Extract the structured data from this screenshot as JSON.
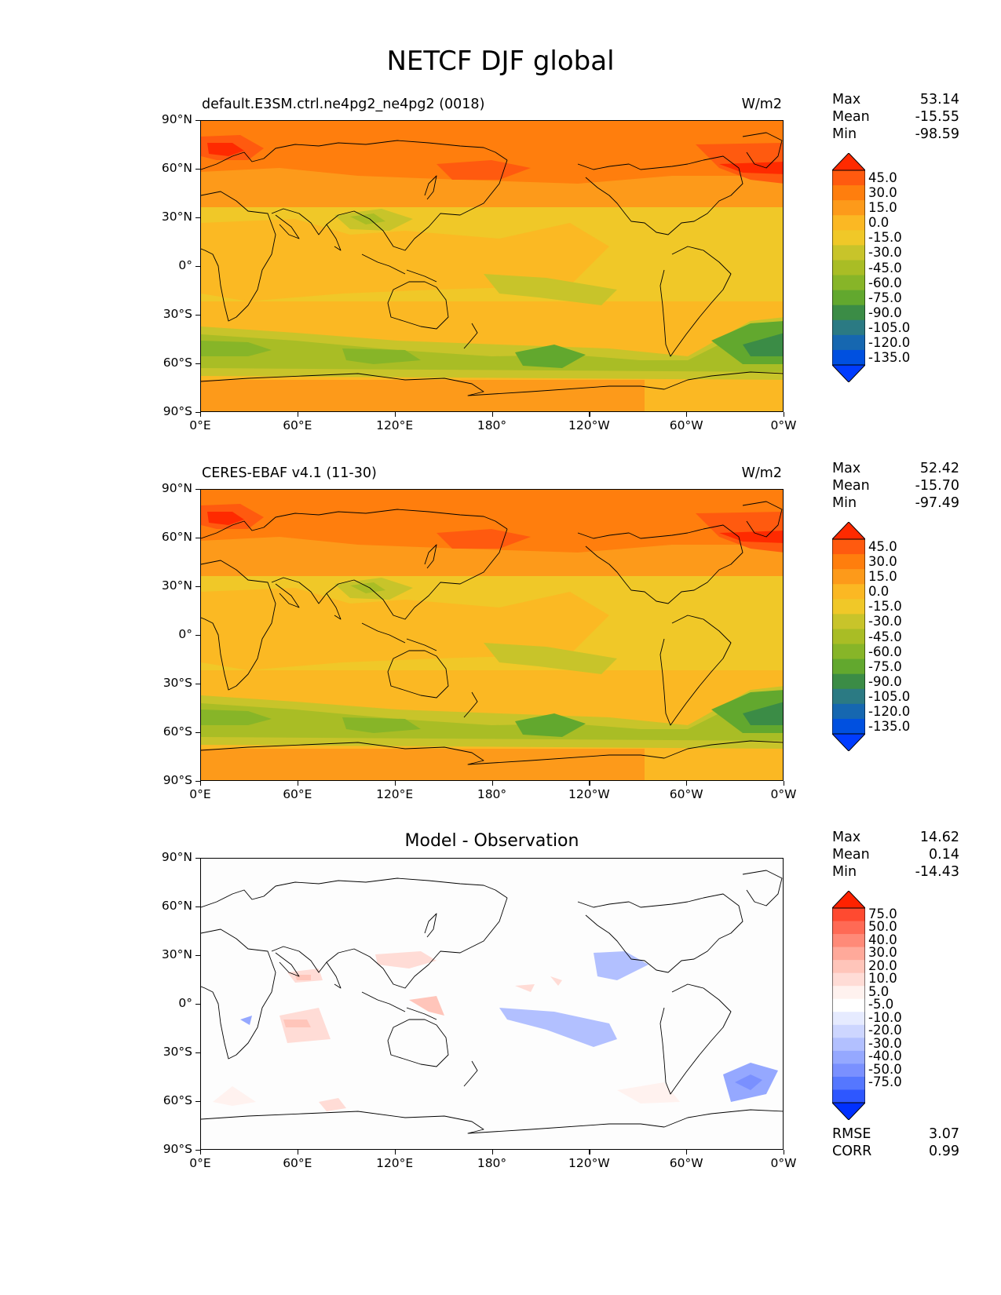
{
  "figure_title": "NETCF DJF global",
  "panels": [
    {
      "left_title": "default.E3SM.ctrl.ne4pg2_ne4pg2 (0018)",
      "center_title": "",
      "units": "W/m2",
      "stats": [
        {
          "label": "Max",
          "value": "53.14"
        },
        {
          "label": "Mean",
          "value": "-15.55"
        },
        {
          "label": "Min",
          "value": "-98.59"
        }
      ],
      "colorbar": {
        "labels": [
          "45.0",
          "30.0",
          "15.0",
          "0.0",
          "-15.0",
          "-30.0",
          "-45.0",
          "-60.0",
          "-75.0",
          "-90.0",
          "-105.0",
          "-120.0",
          "-135.0"
        ],
        "colors": [
          "#ff2a00",
          "#ff5a0f",
          "#ff7e0d",
          "#fd9a1a",
          "#fbb823",
          "#f0c828",
          "#c8c42a",
          "#a9bd25",
          "#87b528",
          "#62a82e",
          "#3b8c46",
          "#2b7a83",
          "#1667b0",
          "#0050e0",
          "#003cff"
        ]
      },
      "footer_stats": []
    },
    {
      "left_title": "CERES-EBAF v4.1 (11-30)",
      "center_title": "",
      "units": "W/m2",
      "stats": [
        {
          "label": "Max",
          "value": "52.42"
        },
        {
          "label": "Mean",
          "value": "-15.70"
        },
        {
          "label": "Min",
          "value": "-97.49"
        }
      ],
      "colorbar": {
        "labels": [
          "45.0",
          "30.0",
          "15.0",
          "0.0",
          "-15.0",
          "-30.0",
          "-45.0",
          "-60.0",
          "-75.0",
          "-90.0",
          "-105.0",
          "-120.0",
          "-135.0"
        ],
        "colors": [
          "#ff2a00",
          "#ff5a0f",
          "#ff7e0d",
          "#fd9a1a",
          "#fbb823",
          "#f0c828",
          "#c8c42a",
          "#a9bd25",
          "#87b528",
          "#62a82e",
          "#3b8c46",
          "#2b7a83",
          "#1667b0",
          "#0050e0",
          "#003cff"
        ]
      },
      "footer_stats": []
    },
    {
      "left_title": "",
      "center_title": "Model - Observation",
      "units": "",
      "stats": [
        {
          "label": "Max",
          "value": "14.62"
        },
        {
          "label": "Mean",
          "value": "0.14"
        },
        {
          "label": "Min",
          "value": "-14.43"
        }
      ],
      "colorbar": {
        "labels": [
          "75.0",
          "50.0",
          "40.0",
          "30.0",
          "20.0",
          "10.0",
          "5.0",
          "-5.0",
          "-10.0",
          "-20.0",
          "-30.0",
          "-40.0",
          "-50.0",
          "-75.0"
        ],
        "colors": [
          "#ff2200",
          "#ff4a30",
          "#ff6a55",
          "#ff8a78",
          "#ffa99a",
          "#ffc5ba",
          "#ffdcd6",
          "#fff2ef",
          "#ffffff",
          "#e6ebff",
          "#cdd6ff",
          "#b2c0ff",
          "#95a8ff",
          "#7a90ff",
          "#5577ff",
          "#2e57ff",
          "#0030ff"
        ]
      },
      "footer_stats": [
        {
          "label": "RMSE",
          "value": "3.07"
        },
        {
          "label": "CORR",
          "value": "0.99"
        }
      ]
    }
  ],
  "x_ticks": [
    "0°E",
    "60°E",
    "120°E",
    "180°",
    "120°W",
    "60°W",
    "0°W"
  ],
  "y_ticks": [
    "90°N",
    "60°N",
    "30°N",
    "0°",
    "30°S",
    "60°S",
    "90°S"
  ],
  "map_colors": {
    "land_outline": "#000000",
    "diff_background": "#fdfdfd"
  }
}
